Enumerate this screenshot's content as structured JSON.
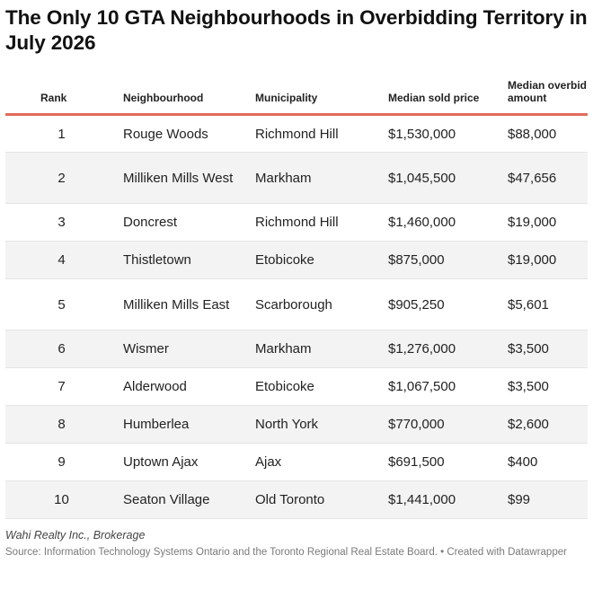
{
  "title": "The Only 10 GTA Neighbourhoods in Overbidding Territory in July 2026",
  "chart_data": {
    "type": "table",
    "columns": [
      "Rank",
      "Neighbourhood",
      "Municipality",
      "Median sold price",
      "Median overbid amount"
    ],
    "rows": [
      [
        "1",
        "Rouge Woods",
        "Richmond Hill",
        "$1,530,000",
        "$88,000"
      ],
      [
        "2",
        "Milliken Mills West",
        "Markham",
        "$1,045,500",
        "$47,656"
      ],
      [
        "3",
        "Doncrest",
        "Richmond Hill",
        "$1,460,000",
        "$19,000"
      ],
      [
        "4",
        "Thistletown",
        "Etobicoke",
        "$875,000",
        "$19,000"
      ],
      [
        "5",
        "Milliken Mills East",
        "Scarborough",
        "$905,250",
        "$5,601"
      ],
      [
        "6",
        "Wismer",
        "Markham",
        "$1,276,000",
        "$3,500"
      ],
      [
        "7",
        "Alderwood",
        "Etobicoke",
        "$1,067,500",
        "$3,500"
      ],
      [
        "8",
        "Humberlea",
        "North York",
        "$770,000",
        "$2,600"
      ],
      [
        "9",
        "Uptown Ajax",
        "Ajax",
        "$691,500",
        "$400"
      ],
      [
        "10",
        "Seaton Village",
        "Old Toronto",
        "$1,441,000",
        "$99"
      ]
    ]
  },
  "footer": {
    "brand": "Wahi Realty Inc., Brokerage",
    "source": "Source: Information Technology Systems Ontario and the Toronto Regional Real Estate Board. • Created with Datawrapper"
  },
  "colors": {
    "header_rule": "#e06b5c",
    "stripe": "#f3f3f3"
  }
}
